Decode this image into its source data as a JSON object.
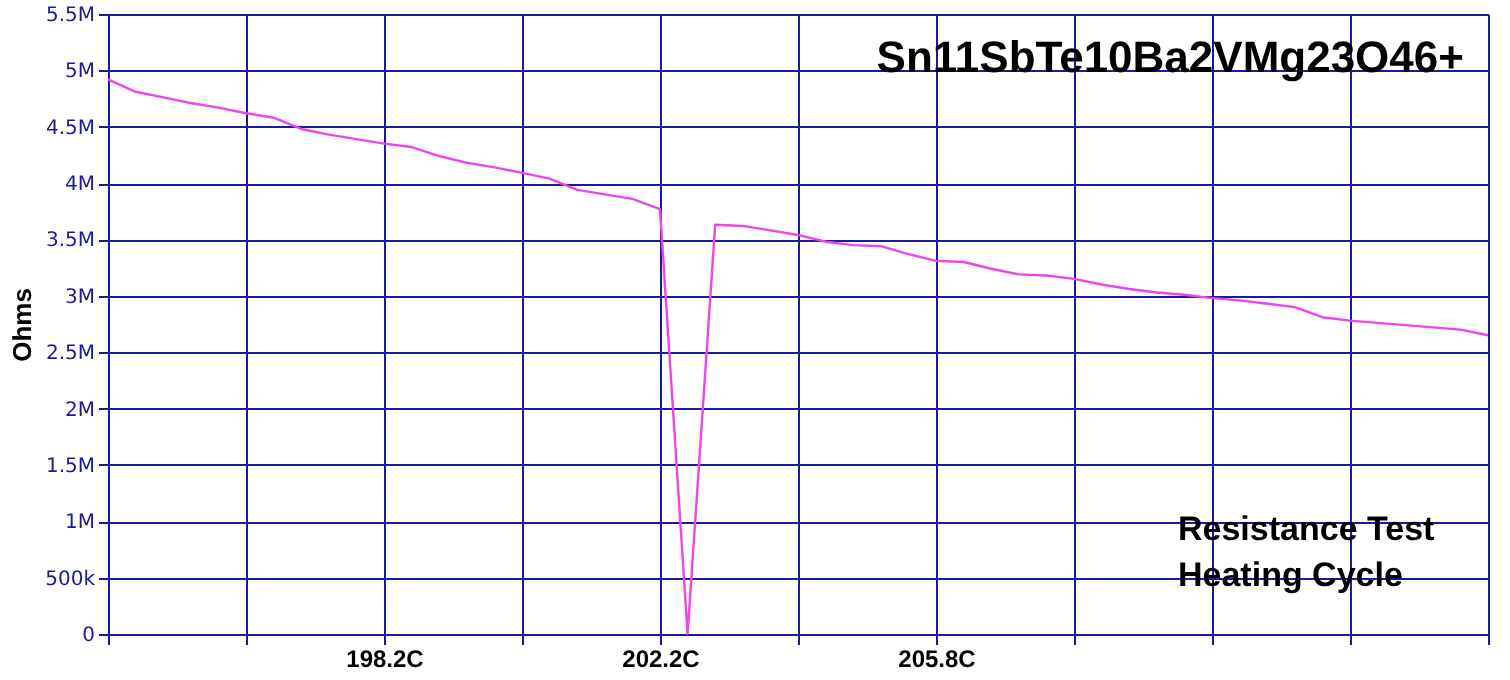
{
  "chart_data": {
    "type": "line",
    "title": "Sn11SbTe10Ba2VMg23O46+",
    "ylabel": "Ohms",
    "annotations": [
      "Resistance Test\nHeating Cycle"
    ],
    "categories": [
      null,
      null,
      null,
      null,
      null,
      null,
      null,
      null,
      null,
      null,
      "198.2C",
      null,
      null,
      null,
      null,
      null,
      null,
      null,
      null,
      null,
      "202.2C",
      null,
      null,
      null,
      null,
      null,
      null,
      null,
      null,
      null,
      "205.8C",
      null,
      null,
      null,
      null,
      null,
      null,
      null,
      null,
      null,
      null,
      null,
      null,
      null,
      null,
      null,
      null,
      null,
      null,
      null,
      null
    ],
    "series": [
      {
        "color": "#ee44ee",
        "values": [
          4920000,
          4810000,
          4760000,
          4710000,
          4670000,
          4620000,
          4580000,
          4480000,
          4430000,
          4390000,
          4350000,
          4320000,
          4240000,
          4180000,
          4140000,
          4090000,
          4040000,
          3940000,
          3900000,
          3860000,
          3770000,
          0,
          3630000,
          3620000,
          3580000,
          3540000,
          3480000,
          3450000,
          3440000,
          3370000,
          3310000,
          3300000,
          3240000,
          3190000,
          3180000,
          3150000,
          3100000,
          3060000,
          3030000,
          3010000,
          2980000,
          2960000,
          2930000,
          2900000,
          2810000,
          2780000,
          2760000,
          2740000,
          2720000,
          2700000,
          2650000
        ]
      }
    ],
    "ylim": [
      0,
      5500000
    ],
    "yticks": [
      {
        "value": 0,
        "label": "0"
      },
      {
        "value": 500000,
        "label": "500k"
      },
      {
        "value": 1000000,
        "label": "1M"
      },
      {
        "value": 1500000,
        "label": "1.5M"
      },
      {
        "value": 2000000,
        "label": "2M"
      },
      {
        "value": 2500000,
        "label": "2.5M"
      },
      {
        "value": 3000000,
        "label": "3M"
      },
      {
        "value": 3500000,
        "label": "3.5M"
      },
      {
        "value": 4000000,
        "label": "4M"
      },
      {
        "value": 4500000,
        "label": "4.5M"
      },
      {
        "value": 5000000,
        "label": "5M"
      },
      {
        "value": 5500000,
        "label": "5.5M"
      }
    ],
    "grid": true,
    "line_style": "solid",
    "marker": "none"
  }
}
